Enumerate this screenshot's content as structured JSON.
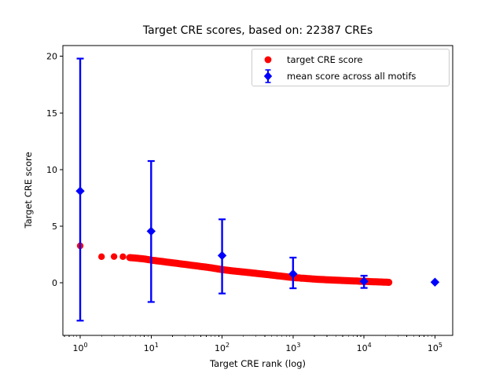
{
  "chart_data": {
    "type": "scatter",
    "title": "Target CRE scores, based on: 22387 CREs",
    "xlabel": "Target CRE rank (log)",
    "ylabel": "Target CRE score",
    "x_scale": "log",
    "grid": false,
    "xlim_log10": [
      -0.244,
      5.25
    ],
    "ylim": [
      -4.65,
      20.95
    ],
    "x_ticks": [
      {
        "value": 1,
        "base": "10",
        "exp": "0"
      },
      {
        "value": 10,
        "base": "10",
        "exp": "1"
      },
      {
        "value": 100,
        "base": "10",
        "exp": "2"
      },
      {
        "value": 1000,
        "base": "10",
        "exp": "3"
      },
      {
        "value": 10000,
        "base": "10",
        "exp": "4"
      },
      {
        "value": 100000,
        "base": "10",
        "exp": "5"
      }
    ],
    "y_ticks": [
      0,
      5,
      10,
      15,
      20
    ],
    "legend": {
      "position": "upper right"
    },
    "series": [
      {
        "name": "target CRE score",
        "color": "#ff0000",
        "marker": "circle",
        "n_cres": 22387,
        "note": "22387 ranked CREs; sampled control points (rank, score)",
        "points": [
          [
            1,
            3.26
          ],
          [
            2,
            2.3
          ],
          [
            3,
            2.31
          ],
          [
            4,
            2.3
          ],
          [
            5,
            2.22
          ],
          [
            6,
            2.18
          ],
          [
            8,
            2.1
          ],
          [
            10,
            2.0
          ],
          [
            15,
            1.86
          ],
          [
            20,
            1.76
          ],
          [
            30,
            1.62
          ],
          [
            50,
            1.44
          ],
          [
            70,
            1.32
          ],
          [
            100,
            1.16
          ],
          [
            150,
            1.03
          ],
          [
            200,
            0.95
          ],
          [
            300,
            0.83
          ],
          [
            500,
            0.68
          ],
          [
            700,
            0.57
          ],
          [
            1000,
            0.46
          ],
          [
            1500,
            0.38
          ],
          [
            2000,
            0.32
          ],
          [
            3000,
            0.26
          ],
          [
            5000,
            0.2
          ],
          [
            7000,
            0.16
          ],
          [
            10000,
            0.12
          ],
          [
            15000,
            0.08
          ],
          [
            20000,
            0.05
          ],
          [
            22387,
            0.03
          ]
        ]
      },
      {
        "name": "mean score across all motifs",
        "color": "#0000ff",
        "marker": "diamond",
        "points": [
          {
            "x": 1,
            "y": 8.1,
            "lo": -3.35,
            "hi": 19.8
          },
          {
            "x": 10,
            "y": 4.55,
            "lo": -1.7,
            "hi": 10.75
          },
          {
            "x": 100,
            "y": 2.4,
            "lo": -0.95,
            "hi": 5.6
          },
          {
            "x": 1000,
            "y": 0.78,
            "lo": -0.49,
            "hi": 2.22
          },
          {
            "x": 10000,
            "y": 0.12,
            "lo": -0.46,
            "hi": 0.62
          },
          {
            "x": 100000,
            "y": 0.05,
            "lo": 0.05,
            "hi": 0.05
          }
        ]
      }
    ]
  }
}
